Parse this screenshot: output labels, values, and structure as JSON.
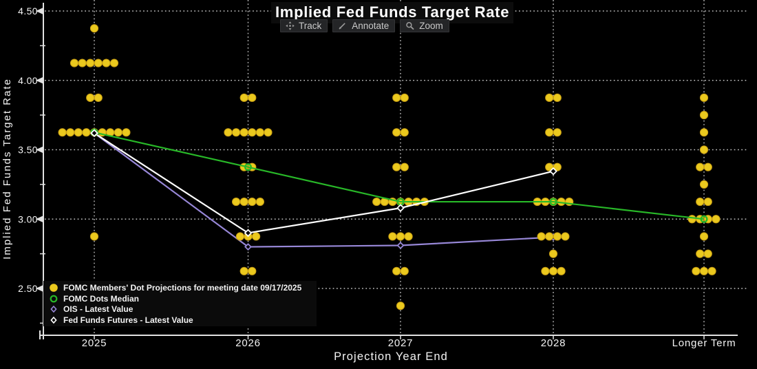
{
  "title": "Implied Fed Funds Target Rate",
  "toolbar": {
    "track_label": "Track",
    "annotate_label": "Annotate",
    "zoom_label": "Zoom"
  },
  "colors": {
    "background": "#000000",
    "dots": "#ebc91e",
    "median_line": "#28b828",
    "ois_line": "#9787d7",
    "futures_line": "#ffffff",
    "axis": "#e2e2e2",
    "grid": "#cfcfcf",
    "text": "#ffffff"
  },
  "chart_data": {
    "type": "scatter",
    "title": "Implied Fed Funds Target Rate",
    "xlabel": "Projection Year End",
    "ylabel": "Implied Fed Funds Target Rate",
    "categories": [
      "2025",
      "2026",
      "2027",
      "2028",
      "Longer Term"
    ],
    "y_ticks": [
      "4.50",
      "4.00",
      "3.50",
      "3.00",
      "2.50"
    ],
    "y_tick_values": [
      4.5,
      4.0,
      3.5,
      3.0,
      2.5
    ],
    "y_minor_tick_values": [
      4.25,
      3.75,
      3.25,
      2.75,
      2.25
    ],
    "ylim": [
      2.16,
      4.58
    ],
    "grid": "dotted",
    "legend_position": "bottom-left",
    "dot_projections": [
      {
        "category": "2025",
        "rows": [
          [
            4.375,
            1
          ],
          [
            4.125,
            6
          ],
          [
            3.875,
            2
          ],
          [
            3.625,
            9
          ],
          [
            2.875,
            1
          ]
        ]
      },
      {
        "category": "2026",
        "rows": [
          [
            3.875,
            2
          ],
          [
            3.625,
            6
          ],
          [
            3.375,
            2
          ],
          [
            3.125,
            4
          ],
          [
            2.875,
            3
          ],
          [
            2.625,
            2
          ]
        ]
      },
      {
        "category": "2027",
        "rows": [
          [
            3.875,
            2
          ],
          [
            3.625,
            2
          ],
          [
            3.375,
            2
          ],
          [
            3.125,
            7
          ],
          [
            2.875,
            3
          ],
          [
            2.625,
            2
          ],
          [
            2.375,
            1
          ]
        ]
      },
      {
        "category": "2028",
        "rows": [
          [
            3.875,
            2
          ],
          [
            3.625,
            2
          ],
          [
            3.375,
            2
          ],
          [
            3.125,
            5
          ],
          [
            2.875,
            4
          ],
          [
            2.75,
            1
          ],
          [
            2.625,
            3
          ]
        ]
      },
      {
        "category": "Longer Term",
        "rows": [
          [
            3.875,
            1
          ],
          [
            3.75,
            1
          ],
          [
            3.625,
            1
          ],
          [
            3.5,
            1
          ],
          [
            3.375,
            2
          ],
          [
            3.25,
            1
          ],
          [
            3.125,
            2
          ],
          [
            3.0,
            4
          ],
          [
            2.875,
            1
          ],
          [
            2.75,
            2
          ],
          [
            2.625,
            3
          ]
        ]
      }
    ],
    "series": [
      {
        "name": "FOMC Dots Median",
        "color": "#28b828",
        "marker": "open-circle",
        "values": [
          3.625,
          3.375,
          3.125,
          3.125,
          3.0
        ]
      },
      {
        "name": "OIS - Latest Value",
        "color": "#9787d7",
        "marker": "open-diamond",
        "values": [
          3.62,
          2.8,
          2.81,
          2.87,
          null
        ]
      },
      {
        "name": "Fed Funds Futures - Latest Value",
        "color": "#ffffff",
        "marker": "open-diamond",
        "values": [
          3.62,
          2.9,
          3.08,
          3.345,
          null
        ]
      }
    ],
    "legend": [
      {
        "label": "FOMC Members' Dot Projections for meeting date 09/17/2025",
        "marker": "filled-circle",
        "color": "#ebc91e"
      },
      {
        "label": "FOMC Dots Median",
        "marker": "open-circle",
        "color": "#28b828"
      },
      {
        "label": "OIS - Latest Value",
        "marker": "open-diamond",
        "color": "#9787d7"
      },
      {
        "label": "Fed Funds Futures - Latest Value",
        "marker": "open-diamond",
        "color": "#ffffff"
      }
    ]
  }
}
